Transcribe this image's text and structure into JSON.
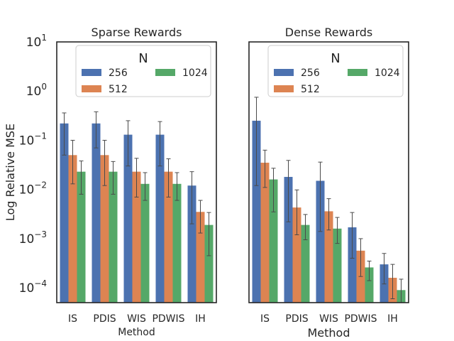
{
  "chart_data": [
    {
      "type": "bar",
      "title": "Sparse Rewards",
      "xlabel": "Method",
      "ylabel": "Log Relative MSE",
      "yscale": "log",
      "ylim": [
        5e-05,
        10
      ],
      "categories": [
        "IS",
        "PDIS",
        "WIS",
        "PDWIS",
        "IH"
      ],
      "series": [
        {
          "name": "256",
          "color": "#4c72b0",
          "values": [
            0.22,
            0.22,
            0.13,
            0.13,
            0.012
          ],
          "err_low": [
            0.05,
            0.07,
            0.03,
            0.03,
            0.002
          ],
          "err_high": [
            0.36,
            0.38,
            0.25,
            0.24,
            0.023
          ]
        },
        {
          "name": "512",
          "color": "#dd8452",
          "values": [
            0.05,
            0.05,
            0.023,
            0.023,
            0.0035
          ],
          "err_low": [
            0.013,
            0.012,
            0.007,
            0.007,
            0.0013
          ],
          "err_high": [
            0.1,
            0.1,
            0.043,
            0.042,
            0.006
          ]
        },
        {
          "name": "1024",
          "color": "#55a868",
          "values": [
            0.023,
            0.023,
            0.013,
            0.013,
            0.0019
          ],
          "err_low": [
            0.008,
            0.008,
            0.006,
            0.006,
            0.00045
          ],
          "err_high": [
            0.038,
            0.037,
            0.022,
            0.022,
            0.0034
          ]
        }
      ],
      "legend": {
        "title": "N",
        "position": "top",
        "columns": 2
      },
      "grid": false
    },
    {
      "type": "bar",
      "title": "Dense Rewards",
      "xlabel": "Method",
      "ylabel": "",
      "yscale": "log",
      "ylim": [
        5e-05,
        10
      ],
      "categories": [
        "IS",
        "PDIS",
        "WIS",
        "PDWIS",
        "IH"
      ],
      "series": [
        {
          "name": "256",
          "color": "#4c72b0",
          "values": [
            0.25,
            0.018,
            0.015,
            0.0017,
            0.0003
          ],
          "err_low": [
            0.012,
            0.0022,
            0.0014,
            0.0004,
            0.00012
          ],
          "err_high": [
            0.75,
            0.039,
            0.036,
            0.0034,
            0.0005
          ]
        },
        {
          "name": "512",
          "color": "#dd8452",
          "values": [
            0.035,
            0.0043,
            0.0036,
            0.00057,
            0.00016
          ],
          "err_low": [
            0.011,
            0.0012,
            0.0015,
            0.00017,
            6e-05
          ],
          "err_high": [
            0.063,
            0.0098,
            0.0065,
            0.001,
            0.0003
          ]
        },
        {
          "name": "1024",
          "color": "#55a868",
          "values": [
            0.016,
            0.0019,
            0.0016,
            0.00026,
            9e-05
          ],
          "err_low": [
            0.0035,
            0.00095,
            0.0008,
            0.00014,
            5e-05
          ],
          "err_high": [
            0.027,
            0.0031,
            0.0027,
            0.00035,
            0.00015
          ]
        }
      ],
      "legend": {
        "title": "N",
        "position": "top",
        "columns": 2
      },
      "grid": false
    }
  ],
  "ytick_labels": [
    {
      "base": "10",
      "exp": "1"
    },
    {
      "base": "10",
      "exp": "0"
    },
    {
      "base": "10",
      "exp": "−1"
    },
    {
      "base": "10",
      "exp": "−2"
    },
    {
      "base": "10",
      "exp": "−3"
    },
    {
      "base": "10",
      "exp": "−4"
    }
  ]
}
